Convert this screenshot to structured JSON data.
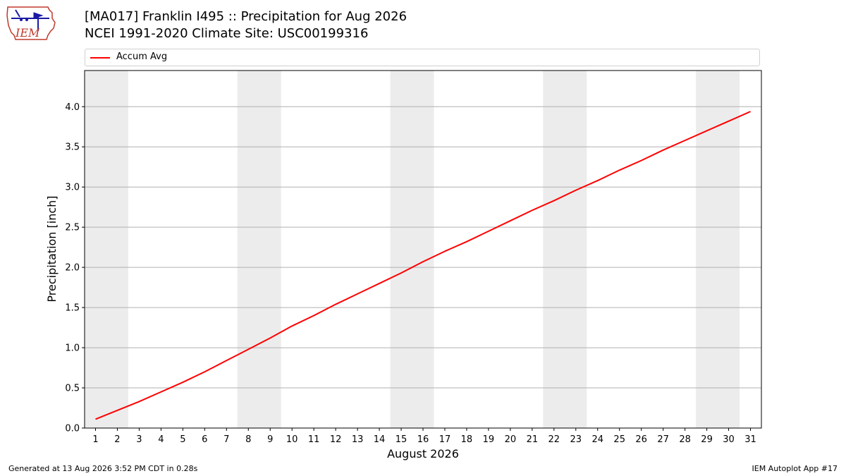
{
  "header": {
    "title_line1": "[MA017] Franklin I495  :: Precipitation for Aug 2026",
    "title_line2": "NCEI 1991-2020 Climate Site: USC00199316"
  },
  "logo": {
    "text": "IEM",
    "colors": {
      "outline": "#c0392b",
      "icon": "#1a1aa6"
    }
  },
  "footer": {
    "left": "Generated at 13 Aug 2026 3:52 PM CDT in 0.28s",
    "right": "IEM Autoplot App #17"
  },
  "chart_data": {
    "type": "line",
    "xlabel": "August 2026",
    "ylabel": "Precipitation [inch]",
    "xlim": [
      0.5,
      31.5
    ],
    "ylim": [
      0,
      4.45
    ],
    "x": [
      1,
      2,
      3,
      4,
      5,
      6,
      7,
      8,
      9,
      10,
      11,
      12,
      13,
      14,
      15,
      16,
      17,
      18,
      19,
      20,
      21,
      22,
      23,
      24,
      25,
      26,
      27,
      28,
      29,
      30,
      31
    ],
    "x_tick_labels": [
      "1",
      "2",
      "3",
      "4",
      "5",
      "6",
      "7",
      "8",
      "9",
      "10",
      "11",
      "12",
      "13",
      "14",
      "15",
      "16",
      "17",
      "18",
      "19",
      "20",
      "21",
      "22",
      "23",
      "24",
      "25",
      "26",
      "27",
      "28",
      "29",
      "30",
      "31"
    ],
    "y_ticks": [
      0.0,
      0.5,
      1.0,
      1.5,
      2.0,
      2.5,
      3.0,
      3.5,
      4.0
    ],
    "y_tick_labels": [
      "0.0",
      "0.5",
      "1.0",
      "1.5",
      "2.0",
      "2.5",
      "3.0",
      "3.5",
      "4.0"
    ],
    "series": [
      {
        "name": "Accum Avg",
        "color": "#ff0000",
        "values": [
          0.11,
          0.22,
          0.33,
          0.45,
          0.57,
          0.7,
          0.84,
          0.98,
          1.12,
          1.27,
          1.4,
          1.54,
          1.67,
          1.8,
          1.93,
          2.07,
          2.2,
          2.32,
          2.45,
          2.58,
          2.71,
          2.83,
          2.96,
          3.08,
          3.21,
          3.33,
          3.46,
          3.58,
          3.7,
          3.82,
          3.94
        ]
      }
    ],
    "weekend_shading": [
      [
        0.5,
        2.5
      ],
      [
        7.5,
        9.5
      ],
      [
        14.5,
        16.5
      ],
      [
        21.5,
        23.5
      ],
      [
        28.5,
        30.5
      ]
    ],
    "shading_color": "#ececec",
    "grid": "y",
    "legend_position": "top"
  }
}
